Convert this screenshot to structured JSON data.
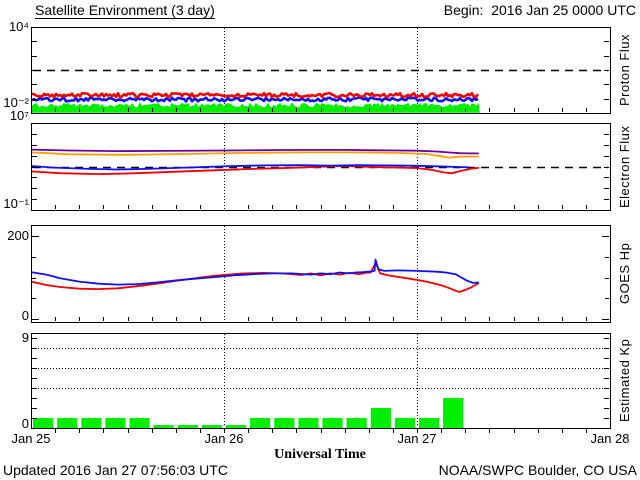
{
  "header": {
    "title": "Satellite Environment (3 day)",
    "begin": "Begin:  2016 Jan 25 0000 UTC"
  },
  "footer": {
    "updated": "Updated 2016 Jan 27 07:56:03 UTC",
    "source": "NOAA/SWPC Boulder, CO USA"
  },
  "xaxis": {
    "title": "Universal Time",
    "tick_labels": [
      "Jan 25",
      "Jan 26",
      "Jan 27",
      "Jan 28"
    ],
    "span_days": 3,
    "minor_tick_hours": 3
  },
  "chart_data": [
    {
      "type": "line",
      "title": "Proton Flux",
      "scale": "log",
      "ylim": [
        0.01,
        10000
      ],
      "ytick_label_top": "10⁴",
      "ytick_label_bottom": "10⁻²",
      "threshold_dashed_line": 10,
      "grid_day_lines": true,
      "data_end_day": 2.32,
      "series": [
        {
          "name": "green-trace",
          "color": "#00ee00",
          "style": "noisy_fill",
          "base_exp": -1.52,
          "noise_exp": 0.16
        },
        {
          "name": "blue-trace",
          "color": "#1111ee",
          "style": "noisy",
          "base_exp": -1.06,
          "noise_exp": 0.13
        },
        {
          "name": "red-trace",
          "color": "#ee0000",
          "style": "noisy",
          "base_exp": -0.75,
          "noise_exp": 0.14
        }
      ]
    },
    {
      "type": "line",
      "title": "Electron Flux",
      "scale": "log",
      "ylim": [
        0.1,
        10000000
      ],
      "ytick_label_top": "10⁷",
      "ytick_label_bottom": "10⁻¹",
      "threshold_dashed_line": 1000,
      "grid_day_lines": true,
      "data_end_day": 2.32,
      "series": [
        {
          "name": "red-trace",
          "color": "#ee0000",
          "style": "line",
          "points_day_exp": [
            [
              0,
              2.55
            ],
            [
              0.15,
              2.38
            ],
            [
              0.35,
              2.3
            ],
            [
              0.55,
              2.38
            ],
            [
              0.75,
              2.52
            ],
            [
              0.95,
              2.65
            ],
            [
              1.15,
              2.78
            ],
            [
              1.35,
              2.88
            ],
            [
              1.5,
              2.98
            ],
            [
              1.62,
              3.05
            ],
            [
              1.75,
              2.96
            ],
            [
              1.9,
              2.9
            ],
            [
              2.0,
              2.85
            ],
            [
              2.08,
              2.68
            ],
            [
              2.14,
              2.45
            ],
            [
              2.18,
              2.38
            ],
            [
              2.23,
              2.6
            ],
            [
              2.28,
              2.8
            ],
            [
              2.32,
              2.88
            ]
          ]
        },
        {
          "name": "blue-trace",
          "color": "#1111ee",
          "style": "line",
          "points_day_exp": [
            [
              0,
              3.05
            ],
            [
              0.12,
              2.9
            ],
            [
              0.3,
              2.78
            ],
            [
              0.45,
              2.72
            ],
            [
              0.6,
              2.78
            ],
            [
              0.8,
              2.9
            ],
            [
              1.0,
              3.02
            ],
            [
              1.2,
              3.1
            ],
            [
              1.4,
              3.12
            ],
            [
              1.55,
              3.08
            ],
            [
              1.7,
              3.12
            ],
            [
              1.85,
              3.1
            ],
            [
              2.0,
              3.06
            ],
            [
              2.1,
              3.02
            ],
            [
              2.2,
              2.96
            ],
            [
              2.27,
              2.92
            ]
          ]
        },
        {
          "name": "orange-trace",
          "color": "#ff9f00",
          "style": "line",
          "points_day_exp": [
            [
              0,
              4.3
            ],
            [
              0.2,
              4.12
            ],
            [
              0.5,
              4.08
            ],
            [
              0.8,
              4.15
            ],
            [
              1.1,
              4.25
            ],
            [
              1.4,
              4.3
            ],
            [
              1.7,
              4.3
            ],
            [
              1.9,
              4.25
            ],
            [
              2.05,
              4.15
            ],
            [
              2.12,
              3.95
            ],
            [
              2.17,
              3.82
            ],
            [
              2.22,
              3.9
            ],
            [
              2.27,
              3.92
            ],
            [
              2.32,
              3.92
            ]
          ]
        },
        {
          "name": "purple-trace",
          "color": "#6600aa",
          "style": "line",
          "points_day_exp": [
            [
              0,
              4.55
            ],
            [
              0.2,
              4.47
            ],
            [
              0.45,
              4.42
            ],
            [
              0.7,
              4.43
            ],
            [
              1.0,
              4.47
            ],
            [
              1.3,
              4.52
            ],
            [
              1.6,
              4.53
            ],
            [
              1.85,
              4.48
            ],
            [
              2.0,
              4.45
            ],
            [
              2.1,
              4.38
            ],
            [
              2.18,
              4.28
            ],
            [
              2.22,
              4.22
            ],
            [
              2.27,
              4.2
            ],
            [
              2.32,
              4.2
            ]
          ]
        }
      ]
    },
    {
      "type": "line",
      "title": "GOES Hp",
      "scale": "linear",
      "ylim": [
        0,
        200
      ],
      "ytick_label_top": "200",
      "ytick_label_bottom": "0",
      "ytick_step": 50,
      "grid_day_lines": true,
      "data_end_day": 2.32,
      "series": [
        {
          "name": "red-trace",
          "color": "#ee0000",
          "style": "line",
          "points_day_value": [
            [
              0,
              90
            ],
            [
              0.08,
              82
            ],
            [
              0.15,
              77
            ],
            [
              0.25,
              73
            ],
            [
              0.35,
              72
            ],
            [
              0.45,
              74
            ],
            [
              0.55,
              79
            ],
            [
              0.65,
              85
            ],
            [
              0.75,
              92
            ],
            [
              0.85,
              98
            ],
            [
              0.95,
              104
            ],
            [
              1.05,
              108
            ],
            [
              1.1,
              110
            ],
            [
              1.2,
              111
            ],
            [
              1.3,
              110
            ],
            [
              1.4,
              106
            ],
            [
              1.45,
              110
            ],
            [
              1.5,
              105
            ],
            [
              1.55,
              110
            ],
            [
              1.6,
              107
            ],
            [
              1.65,
              111
            ],
            [
              1.7,
              108
            ],
            [
              1.73,
              111
            ],
            [
              1.76,
              112
            ],
            [
              1.785,
              135
            ],
            [
              1.81,
              110
            ],
            [
              1.85,
              105
            ],
            [
              1.95,
              98
            ],
            [
              2.05,
              90
            ],
            [
              2.12,
              82
            ],
            [
              2.17,
              74
            ],
            [
              2.2,
              68
            ],
            [
              2.22,
              65
            ],
            [
              2.25,
              70
            ],
            [
              2.28,
              76
            ],
            [
              2.32,
              87
            ]
          ]
        },
        {
          "name": "blue-trace",
          "color": "#1111ee",
          "style": "line",
          "points_day_value": [
            [
              0,
              113
            ],
            [
              0.08,
              107
            ],
            [
              0.15,
              98
            ],
            [
              0.25,
              90
            ],
            [
              0.35,
              85
            ],
            [
              0.45,
              83
            ],
            [
              0.55,
              84
            ],
            [
              0.65,
              88
            ],
            [
              0.75,
              93
            ],
            [
              0.85,
              97
            ],
            [
              0.95,
              101
            ],
            [
              1.05,
              105
            ],
            [
              1.15,
              108
            ],
            [
              1.25,
              110
            ],
            [
              1.35,
              110
            ],
            [
              1.45,
              107
            ],
            [
              1.5,
              110
            ],
            [
              1.55,
              108
            ],
            [
              1.6,
              112
            ],
            [
              1.65,
              110
            ],
            [
              1.68,
              112
            ],
            [
              1.72,
              113
            ],
            [
              1.75,
              114
            ],
            [
              1.78,
              116
            ],
            [
              1.785,
              143
            ],
            [
              1.8,
              120
            ],
            [
              1.83,
              116
            ],
            [
              1.9,
              117
            ],
            [
              2.0,
              116
            ],
            [
              2.1,
              114
            ],
            [
              2.15,
              112
            ],
            [
              2.2,
              108
            ],
            [
              2.23,
              100
            ],
            [
              2.26,
              92
            ],
            [
              2.29,
              87
            ],
            [
              2.32,
              88
            ]
          ]
        }
      ]
    },
    {
      "type": "bar",
      "title": "Estimated Kp",
      "scale": "linear",
      "ylim": [
        0,
        9
      ],
      "ytick_label_top": "9",
      "ytick_label_bottom": "0",
      "dotted_gridlines": [
        4,
        6,
        8
      ],
      "grid_day_lines": true,
      "bar_interval_hours": 3,
      "bar_color": "#00ee00",
      "zero_bar_stub": 0.3,
      "values": [
        1,
        1,
        1,
        1,
        1,
        0,
        0,
        0,
        0,
        1,
        1,
        1,
        1,
        1,
        2,
        1,
        1,
        3
      ]
    }
  ]
}
